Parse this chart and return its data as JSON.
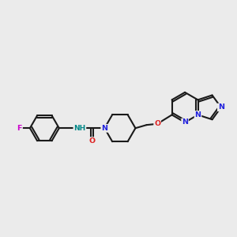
{
  "bg": "#ebebeb",
  "bc": "#1a1a1a",
  "F_color": "#cc00cc",
  "N_color": "#2222dd",
  "O_color": "#dd2222",
  "NH_color": "#008888",
  "lw": 1.5,
  "fs": 6.8,
  "figsize": [
    3.0,
    3.0
  ],
  "dpi": 100,
  "xlim": [
    0.0,
    11.0
  ],
  "ylim": [
    2.8,
    8.8
  ]
}
